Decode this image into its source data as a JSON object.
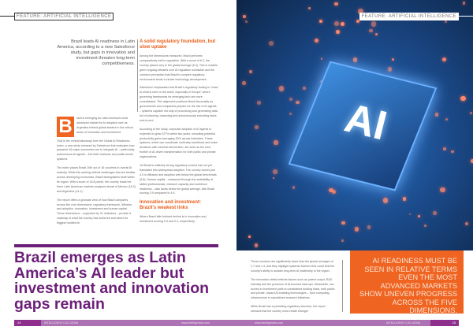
{
  "section_tag": "FEATURE: ARTIFICIAL INTELLIGENCE",
  "standfirst": "Brazil leads AI readiness in Latin America, according to a new Salesforce study, but gaps in innovation and investment threaten long-term competitiveness.",
  "headline": "Brazil emerges as Latin America’s AI leader but investment and innovation gaps remain",
  "drop_cap": "B",
  "col1": [
    "razil is emerging as Latin America's most advanced market for AI adoption over as Argentina behind global leaders in the critical areas of innovation and investment.",
    "That is the central takeaway from the Global AI Readiness Index, a new study released by Salesforce that evaluates how prepared 16 major economies are to integrate AI – particularly autonomous AI agents – into their business and public-sector systems.",
    "The index places Brazil 10th out of 16 countries in overall AI maturity. While this ranking reflects challenges that are familiar across developing economies, Brazil distinguishes itself within its region. With a score of 18.8 points, the country leads the three Latin American markets analysed ahead of Mexico (16.3) and Argentina (14.1).",
    "The report offers a granular view of how Brazil compares across five core dimensions: regulatory framework, diffusion and adoption, innovation, investment and human capital. These dimensions – supported by 31 indicators – provide a roadmap of what the country has achieved and where its biggest hurdles lie."
  ],
  "col2_heading1": "A solid regulatory foundation, but slow uptake",
  "col2a": [
    "Among the dimensions measured, Brazil performs comparatively well in regulation. With a score of 6.3, the country placed very in the global average (6.4). This is notable given ongoing debates over AI regulation worldwide and the common perception that Brazil's complex regulatory environment tends to hinder technology development.",
    "Salesforce emphasises that Brazil's regulatory footing is \"close to what is seen in the world, especially in Europe\" where governing frameworks for emerging tech are more consolidated. This alignment positions Brazil favourably as governments and companies prepare for the rise of AI agents – systems capable not only of processing and generating data but of planning, reasoning and autonomously executing tasks end-to-end.",
    "According to the study, corporate adoption of AI agents is expected to grow 327% within two years, unlocking potential productivity gains averaging 30% across industries. These systems, which can coordinate multi-step workflows and make decisions with minimal intervention, are seen as the next frontier of AI-driven transformation for both public and private organisations.",
    "Yet Brazil's relatively strong regulatory context has not yet translated into widespread adoption. The country scores just 4.0 in diffusion and adoption well below the global benchmark (5.8). Human capital – measured through the availability of skilled professionals, research capacity and workforce readiness – also lands below the global average, with Brazil scoring 3.9 compared to 4.6."
  ],
  "col2_heading2": "Innovation and investment: Brazil's weakest links",
  "col2b": "Where Brazil falls furthest behind is in innovation and investment scoring 0.5 and 0.4, respectively.",
  "col3": [
    "These numbers are significantly lower than the global averages of 1.7 and 1.4, and they highlight systemic barriers that could limit the country's ability to sustain long-term AI leadership in the region.",
    "The innovation deficit reflects factors such as patent output, R&D intensity and the presence of AI-focused start-ups. Meanwhile, low scores in investment point to constrained funding flows, both public and private, toward AI-enabling technologies – from computing infrastructure to specialised research initiatives.",
    "While Brazil has a promising regulatory structure, the report stresses that the country must create stronger"
  ],
  "pull_quote": "AI READINESS MUST BE SEEN IN RELATIVE TERMS EVEN THE MOST ADVANCED MARKETS SHOW UNEVEN PROGRESS ACROSS THE FIVE DIMENSIONS.",
  "image_label": "AI",
  "footer": {
    "page_left": "24",
    "page_right": "25",
    "brand": "INTELLIGENT CIO LATAM",
    "url": "www.intelligentcio.com"
  },
  "colors": {
    "purple": "#6b1f78",
    "orange": "#ef6420",
    "footer": "#ad72b4"
  }
}
